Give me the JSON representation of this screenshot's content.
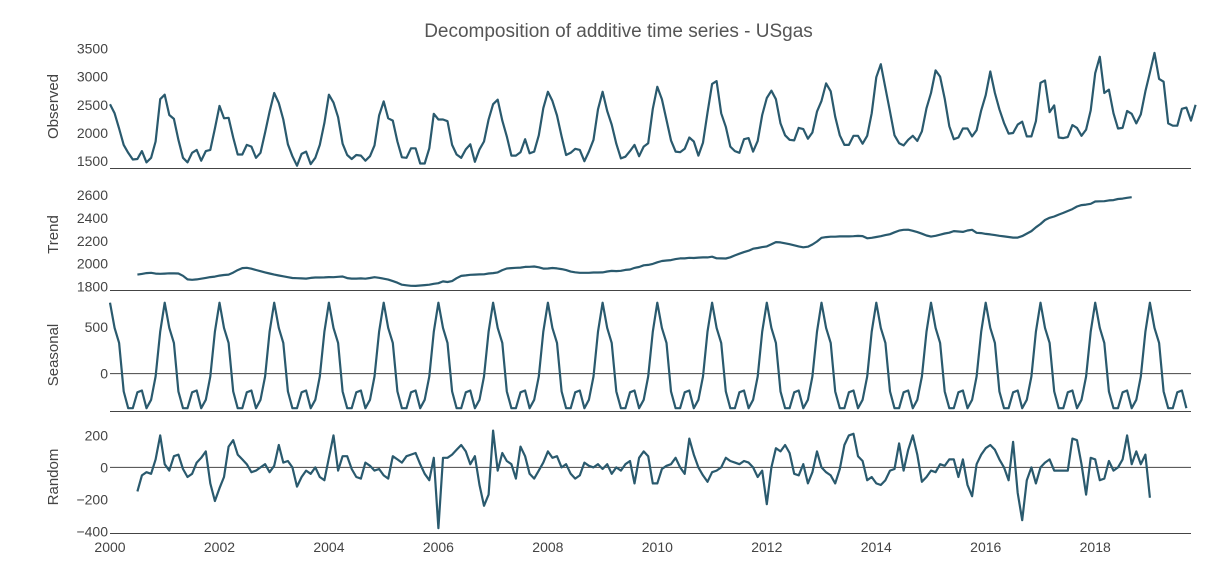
{
  "chart_data": {
    "type": "line",
    "title": "Decomposition of additive time series - USgas",
    "x_range": [
      2000.0,
      2019.75
    ],
    "x_ticks": [
      2000,
      2002,
      2004,
      2006,
      2008,
      2010,
      2012,
      2014,
      2016,
      2018
    ],
    "x_tick_labels": [
      "2000",
      "2002",
      "2004",
      "2006",
      "2008",
      "2010",
      "2012",
      "2014",
      "2016",
      "2018"
    ],
    "series_color": "#2a5a6e",
    "grid": false,
    "panels": [
      {
        "name": "Observed",
        "ylabel": "Observed",
        "ylim": [
          1380,
          3560
        ],
        "y_ticks": [
          1500,
          2000,
          2500,
          3000,
          3500
        ],
        "y_tick_labels": [
          "1500",
          "2000",
          "2500",
          "3000",
          "3500"
        ],
        "zero_line": false,
        "start": 2000.0,
        "values": [
          2510,
          2350,
          2080,
          1790,
          1650,
          1530,
          1540,
          1680,
          1480,
          1560,
          1850,
          2600,
          2680,
          2320,
          2250,
          1880,
          1560,
          1480,
          1650,
          1700,
          1510,
          1680,
          1700,
          2080,
          2480,
          2260,
          2270,
          1920,
          1620,
          1620,
          1790,
          1760,
          1560,
          1650,
          2010,
          2380,
          2710,
          2530,
          2240,
          1800,
          1590,
          1420,
          1630,
          1670,
          1450,
          1560,
          1790,
          2180,
          2680,
          2540,
          2280,
          1810,
          1610,
          1540,
          1610,
          1600,
          1510,
          1590,
          1780,
          2310,
          2560,
          2260,
          2220,
          1850,
          1570,
          1560,
          1730,
          1730,
          1460,
          1460,
          1730,
          2340,
          2240,
          2240,
          2210,
          1790,
          1620,
          1560,
          1710,
          1800,
          1490,
          1710,
          1850,
          2240,
          2510,
          2590,
          2220,
          1940,
          1600,
          1600,
          1660,
          1890,
          1640,
          1670,
          1960,
          2440,
          2730,
          2570,
          2310,
          1940,
          1610,
          1650,
          1720,
          1700,
          1500,
          1670,
          1880,
          2420,
          2730,
          2390,
          2150,
          1810,
          1550,
          1580,
          1680,
          1790,
          1590,
          1760,
          1820,
          2430,
          2820,
          2600,
          2230,
          1870,
          1670,
          1660,
          1720,
          1920,
          1850,
          1600,
          1830,
          2360,
          2870,
          2920,
          2350,
          2110,
          1760,
          1680,
          1650,
          1890,
          1910,
          1670,
          1860,
          2320,
          2620,
          2750,
          2600,
          2170,
          1960,
          1880,
          1870,
          2090,
          2070,
          1900,
          2010,
          2380,
          2570,
          2880,
          2740,
          2290,
          1960,
          1790,
          1790,
          1950,
          1950,
          1810,
          1950,
          2350,
          2990,
          3220,
          2800,
          2380,
          1960,
          1820,
          1780,
          1880,
          1950,
          1860,
          2030,
          2440,
          2710,
          3110,
          3000,
          2610,
          2120,
          1890,
          1920,
          2080,
          2080,
          1940,
          2050,
          2400,
          2670,
          3090,
          2710,
          2420,
          2180,
          1990,
          2000,
          2150,
          2200,
          1940,
          1940,
          2210,
          2890,
          2930,
          2370,
          2490,
          1920,
          1910,
          1930,
          2140,
          2090,
          1950,
          2060,
          2400,
          3060,
          3350,
          2710,
          2770,
          2350,
          2080,
          2090,
          2390,
          2340,
          2170,
          2330,
          2740,
          3070,
          3420,
          2960,
          2910,
          2170,
          2130,
          2130,
          2430,
          2450,
          2220,
          2500
        ]
      },
      {
        "name": "Trend",
        "ylabel": "Trend",
        "ylim": [
          1770,
          2740
        ],
        "y_ticks": [
          1800,
          2000,
          2200,
          2400,
          2600
        ],
        "y_tick_labels": [
          "1800",
          "2000",
          "2200",
          "2400",
          "2600"
        ],
        "zero_line": false,
        "start": 2000.5,
        "values": [
          1905,
          1911,
          1918,
          1920,
          1913,
          1912,
          1913,
          1916,
          1915,
          1914,
          1894,
          1863,
          1859,
          1863,
          1869,
          1876,
          1883,
          1887,
          1896,
          1901,
          1905,
          1922,
          1944,
          1961,
          1964,
          1956,
          1945,
          1934,
          1924,
          1914,
          1905,
          1897,
          1890,
          1882,
          1875,
          1873,
          1871,
          1870,
          1876,
          1879,
          1879,
          1880,
          1883,
          1882,
          1885,
          1888,
          1874,
          1870,
          1870,
          1871,
          1869,
          1875,
          1882,
          1877,
          1869,
          1861,
          1848,
          1834,
          1816,
          1811,
          1807,
          1806,
          1809,
          1813,
          1816,
          1824,
          1829,
          1845,
          1840,
          1848,
          1873,
          1893,
          1898,
          1903,
          1905,
          1906,
          1907,
          1914,
          1918,
          1924,
          1944,
          1958,
          1961,
          1964,
          1966,
          1972,
          1973,
          1975,
          1968,
          1957,
          1958,
          1962,
          1959,
          1953,
          1944,
          1931,
          1925,
          1920,
          1920,
          1920,
          1923,
          1923,
          1924,
          1932,
          1937,
          1935,
          1938,
          1946,
          1949,
          1963,
          1971,
          1986,
          1989,
          1998,
          2012,
          2023,
          2028,
          2031,
          2040,
          2046,
          2046,
          2051,
          2050,
          2053,
          2055,
          2055,
          2061,
          2047,
          2046,
          2045,
          2056,
          2072,
          2087,
          2101,
          2113,
          2131,
          2137,
          2145,
          2151,
          2169,
          2189,
          2186,
          2178,
          2170,
          2161,
          2151,
          2143,
          2148,
          2168,
          2194,
          2226,
          2232,
          2236,
          2236,
          2238,
          2238,
          2238,
          2240,
          2243,
          2241,
          2222,
          2226,
          2233,
          2240,
          2250,
          2258,
          2274,
          2289,
          2296,
          2297,
          2287,
          2276,
          2262,
          2246,
          2237,
          2244,
          2253,
          2264,
          2271,
          2285,
          2281,
          2278,
          2290,
          2296,
          2270,
          2267,
          2260,
          2256,
          2250,
          2244,
          2238,
          2233,
          2228,
          2228,
          2241,
          2263,
          2285,
          2318,
          2347,
          2382,
          2401,
          2412,
          2429,
          2444,
          2460,
          2477,
          2500,
          2512,
          2516,
          2523,
          2543,
          2545,
          2546,
          2553,
          2556,
          2565,
          2569,
          2576,
          2581
        ]
      },
      {
        "name": "Seasonal",
        "ylabel": "Seasonal",
        "ylim": [
          -400,
          800
        ],
        "y_ticks": [
          0,
          500
        ],
        "y_tick_labels": [
          "0",
          "500"
        ],
        "zero_line": true,
        "start": 2000.0,
        "cycle": [
          760,
          490,
          330,
          -190,
          -370,
          -370,
          -200,
          -180,
          -370,
          -280,
          -30,
          450
        ],
        "years": 19.75
      },
      {
        "name": "Random",
        "ylabel": "Random",
        "ylim": [
          -410,
          290
        ],
        "y_ticks": [
          -400,
          -200,
          0,
          200
        ],
        "y_tick_labels": [
          "−400",
          "−200",
          "0",
          "200"
        ],
        "zero_line": true,
        "start": 2000.5,
        "values": [
          -150,
          -50,
          -30,
          -40,
          50,
          200,
          20,
          -20,
          70,
          80,
          -10,
          -60,
          -40,
          30,
          60,
          100,
          -100,
          -210,
          -130,
          -60,
          130,
          170,
          80,
          50,
          20,
          -30,
          -20,
          0,
          20,
          -30,
          10,
          140,
          30,
          40,
          0,
          -120,
          -60,
          -20,
          -40,
          0,
          -60,
          -80,
          60,
          200,
          -20,
          70,
          70,
          -10,
          -60,
          -70,
          30,
          10,
          -20,
          -10,
          -50,
          -70,
          70,
          50,
          30,
          70,
          80,
          90,
          20,
          -40,
          -80,
          60,
          -380,
          60,
          60,
          80,
          110,
          140,
          100,
          20,
          70,
          -110,
          -240,
          -170,
          230,
          -20,
          90,
          40,
          20,
          -70,
          130,
          70,
          -40,
          -70,
          -20,
          30,
          100,
          60,
          70,
          0,
          20,
          -40,
          -70,
          -50,
          30,
          10,
          0,
          20,
          -10,
          20,
          -40,
          0,
          -20,
          20,
          40,
          -100,
          60,
          100,
          70,
          -100,
          -100,
          -10,
          10,
          20,
          60,
          0,
          -40,
          180,
          80,
          0,
          -50,
          -90,
          -30,
          -20,
          0,
          60,
          40,
          30,
          20,
          40,
          30,
          0,
          -60,
          -20,
          -230,
          0,
          120,
          100,
          140,
          90,
          -40,
          -50,
          20,
          -100,
          -30,
          100,
          0,
          -30,
          -50,
          -100,
          -10,
          140,
          200,
          210,
          70,
          40,
          -80,
          -60,
          -100,
          -110,
          -80,
          -20,
          -10,
          150,
          -20,
          110,
          200,
          80,
          -90,
          -60,
          -20,
          -30,
          20,
          10,
          50,
          50,
          -60,
          50,
          -110,
          -180,
          20,
          80,
          120,
          140,
          110,
          50,
          0,
          -80,
          160,
          -160,
          -330,
          -80,
          0,
          -100,
          0,
          30,
          50,
          -20,
          -20,
          -20,
          -20,
          180,
          170,
          20,
          -170,
          60,
          50,
          -80,
          -70,
          40,
          -20,
          0,
          50,
          200,
          20,
          100,
          20,
          80,
          -190
        ]
      }
    ]
  }
}
